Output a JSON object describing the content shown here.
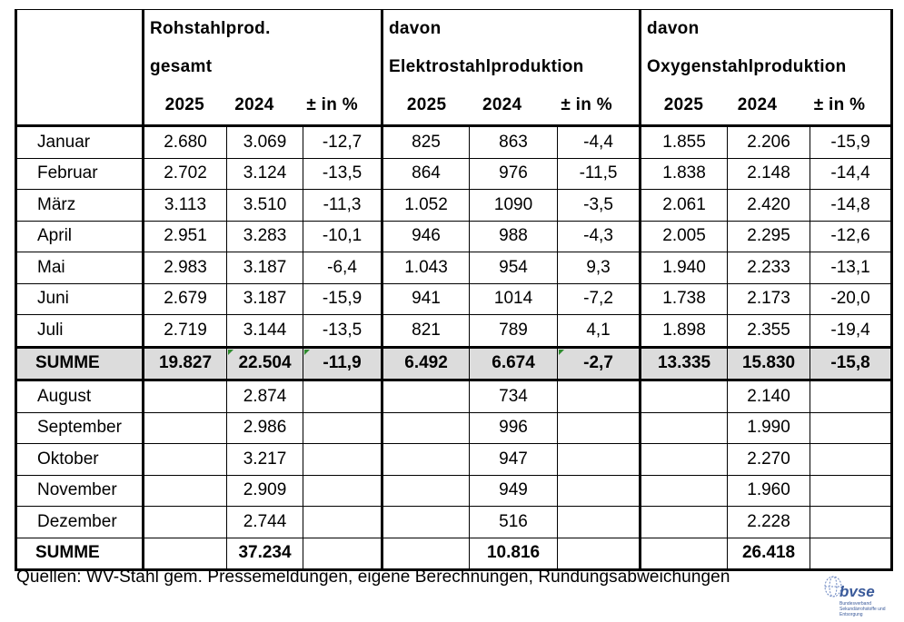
{
  "headers": {
    "group1": [
      "Rohstahlprod.",
      "gesamt"
    ],
    "group2": [
      "davon",
      "Elektrostahlproduktion"
    ],
    "group3": [
      "davon",
      "Oxygenstahlproduktion"
    ],
    "cols": [
      "2025",
      "2024",
      "± in %"
    ]
  },
  "months_first": [
    {
      "label": "Januar",
      "v": [
        "2.680",
        "3.069",
        "-12,7",
        "825",
        "863",
        "-4,4",
        "1.855",
        "2.206",
        "-15,9"
      ]
    },
    {
      "label": "Februar",
      "v": [
        "2.702",
        "3.124",
        "-13,5",
        "864",
        "976",
        "-11,5",
        "1.838",
        "2.148",
        "-14,4"
      ]
    },
    {
      "label": "März",
      "v": [
        "3.113",
        "3.510",
        "-11,3",
        "1.052",
        "1090",
        "-3,5",
        "2.061",
        "2.420",
        "-14,8"
      ]
    },
    {
      "label": "April",
      "v": [
        "2.951",
        "3.283",
        "-10,1",
        "946",
        "988",
        "-4,3",
        "2.005",
        "2.295",
        "-12,6"
      ]
    },
    {
      "label": "Mai",
      "v": [
        "2.983",
        "3.187",
        "-6,4",
        "1.043",
        "954",
        "9,3",
        "1.940",
        "2.233",
        "-13,1"
      ]
    },
    {
      "label": "Juni",
      "v": [
        "2.679",
        "3.187",
        "-15,9",
        "941",
        "1014",
        "-7,2",
        "1.738",
        "2.173",
        "-20,0"
      ]
    },
    {
      "label": "Juli",
      "v": [
        "2.719",
        "3.144",
        "-13,5",
        "821",
        "789",
        "4,1",
        "1.898",
        "2.355",
        "-19,4"
      ]
    }
  ],
  "summe1": {
    "label": "SUMME",
    "v": [
      "19.827",
      "22.504",
      "-11,9",
      "6.492",
      "6.674",
      "-2,7",
      "13.335",
      "15.830",
      "-15,8"
    ]
  },
  "months_second": [
    {
      "label": "August",
      "v": [
        "",
        "2.874",
        "",
        "",
        "734",
        "",
        "",
        "2.140",
        ""
      ]
    },
    {
      "label": "September",
      "v": [
        "",
        "2.986",
        "",
        "",
        "996",
        "",
        "",
        "1.990",
        ""
      ]
    },
    {
      "label": "Oktober",
      "v": [
        "",
        "3.217",
        "",
        "",
        "947",
        "",
        "",
        "2.270",
        ""
      ]
    },
    {
      "label": "November",
      "v": [
        "",
        "2.909",
        "",
        "",
        "949",
        "",
        "",
        "1.960",
        ""
      ]
    },
    {
      "label": "Dezember",
      "v": [
        "",
        "2.744",
        "",
        "",
        "516",
        "",
        "",
        "2.228",
        ""
      ]
    }
  ],
  "summe2": {
    "label": "SUMME",
    "v": [
      "",
      "37.234",
      "",
      "",
      "10.816",
      "",
      "",
      "26.418",
      ""
    ]
  },
  "source": "Quellen: WV-Stahl gem. Pressemeldungen, eigene Berechnungen, Rundungsabweichungen",
  "logo": {
    "word": "bvse",
    "sub": "Bundesverband Sekundärrohstoffe und Entsorgung"
  }
}
